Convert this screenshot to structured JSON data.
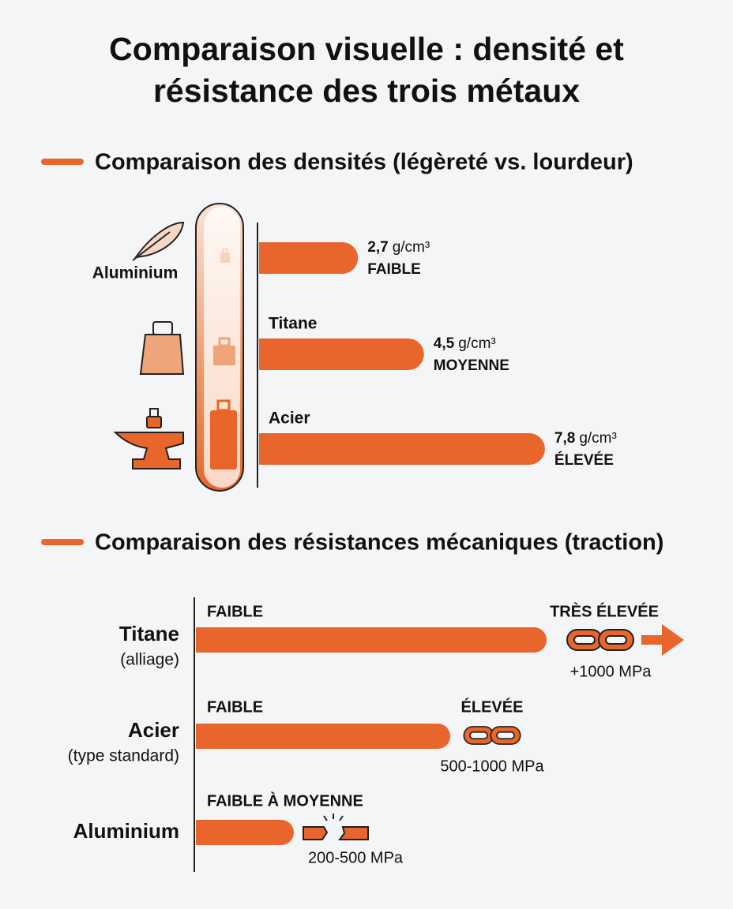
{
  "title": [
    "Comparaison visuelle : densité et",
    "résistance des trois métaux"
  ],
  "density": {
    "heading": "Comparaison des densités (légèreté vs. lourdeur)",
    "items": [
      {
        "name": "Aluminium",
        "value": 2.7,
        "value_label": "2,7",
        "unit": "g/cm³",
        "level": "FAIBLE"
      },
      {
        "name": "Titane",
        "value": 4.5,
        "value_label": "4,5",
        "unit": "g/cm³",
        "level": "MOYENNE"
      },
      {
        "name": "Acier",
        "value": 7.8,
        "value_label": "7,8",
        "unit": "g/cm³",
        "level": "ÉLEVÉE"
      }
    ]
  },
  "strength": {
    "heading": "Comparaison des résistances mécaniques (traction)",
    "items": [
      {
        "name": "Titane",
        "note": "(alliage)",
        "start_label": "FAIBLE",
        "end_label": "TRÈS ÉLEVÉE",
        "range": "+1000 MPa"
      },
      {
        "name": "Acier",
        "note": "(type standard)",
        "start_label": "FAIBLE",
        "end_label": "ÉLEVÉE",
        "range": "500-1000 MPa"
      },
      {
        "name": "Aluminium",
        "start_label": "FAIBLE À MOYENNE",
        "range": "200-500 MPa"
      }
    ]
  }
}
